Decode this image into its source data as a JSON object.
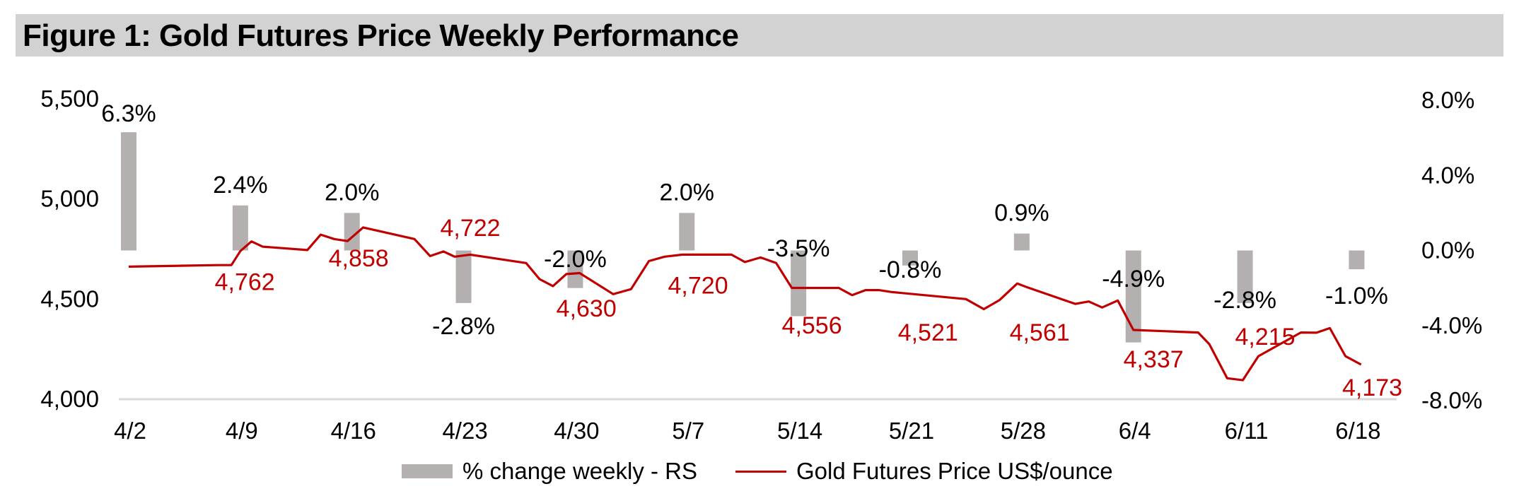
{
  "title": "Figure 1: Gold Futures Price Weekly Performance",
  "colors": {
    "bar": "#b4b0b0",
    "line": "#c00000",
    "price_label": "#c00000",
    "pct_label": "#000000",
    "axis": "#d9d9d9"
  },
  "legend": {
    "bar_label": "% change weekly - RS",
    "line_label": "Gold Futures Price US$/ounce"
  },
  "chart_data": {
    "type": "bar+line",
    "legend_position": "bottom",
    "grid": false,
    "x_ticks": [
      "4/2",
      "4/9",
      "4/16",
      "4/23",
      "4/30",
      "5/7",
      "5/14",
      "5/21",
      "5/28",
      "6/4",
      "6/11",
      "6/18"
    ],
    "y_left": {
      "ticks": [
        "4,000",
        "4,500",
        "5,000",
        "5,500"
      ],
      "range": [
        4000,
        5500
      ]
    },
    "y_right": {
      "ticks": [
        "-8.0%",
        "-4.0%",
        "0.0%",
        "4.0%",
        "8.0%"
      ],
      "range": [
        -8,
        8
      ]
    },
    "bars": [
      {
        "x": 0,
        "value": 6.3,
        "label": "6.3%"
      },
      {
        "x": 5,
        "value": 2.4,
        "label": "2.4%"
      },
      {
        "x": 10,
        "value": 2.0,
        "label": "2.0%"
      },
      {
        "x": 15,
        "value": -2.8,
        "label": "-2.8%"
      },
      {
        "x": 20,
        "value": -2.0,
        "label": "-2.0%"
      },
      {
        "x": 25,
        "value": 2.0,
        "label": "2.0%"
      },
      {
        "x": 30,
        "value": -3.5,
        "label": "-3.5%"
      },
      {
        "x": 35,
        "value": -0.8,
        "label": "-0.8%"
      },
      {
        "x": 40,
        "value": 0.9,
        "label": "0.9%"
      },
      {
        "x": 45,
        "value": -4.9,
        "label": "-4.9%"
      },
      {
        "x": 50,
        "value": -2.8,
        "label": "-2.8%"
      },
      {
        "x": 55,
        "value": -1.0,
        "label": "-1.0%"
      }
    ],
    "price_series": [
      [
        0,
        4662
      ],
      [
        4,
        4670
      ],
      [
        4.6,
        4670
      ],
      [
        5,
        4740
      ],
      [
        5.5,
        4788
      ],
      [
        6,
        4762
      ],
      [
        8,
        4745
      ],
      [
        8.6,
        4822
      ],
      [
        9.2,
        4800
      ],
      [
        9.8,
        4790
      ],
      [
        10.5,
        4858
      ],
      [
        12.8,
        4800
      ],
      [
        13.5,
        4715
      ],
      [
        14.1,
        4738
      ],
      [
        14.6,
        4712
      ],
      [
        15.3,
        4722
      ],
      [
        17.8,
        4680
      ],
      [
        18.4,
        4600
      ],
      [
        19,
        4565
      ],
      [
        19.6,
        4625
      ],
      [
        20.2,
        4630
      ],
      [
        21.7,
        4525
      ],
      [
        22.5,
        4550
      ],
      [
        23.3,
        4690
      ],
      [
        24,
        4712
      ],
      [
        24.8,
        4722
      ],
      [
        27,
        4722
      ],
      [
        27.6,
        4685
      ],
      [
        28.3,
        4708
      ],
      [
        29,
        4680
      ],
      [
        29.7,
        4556
      ],
      [
        31.8,
        4556
      ],
      [
        32.4,
        4520
      ],
      [
        33,
        4545
      ],
      [
        33.6,
        4545
      ],
      [
        34.2,
        4535
      ],
      [
        37.5,
        4500
      ],
      [
        38.3,
        4450
      ],
      [
        39,
        4495
      ],
      [
        39.8,
        4578
      ],
      [
        40.2,
        4561
      ],
      [
        42.4,
        4476
      ],
      [
        43,
        4488
      ],
      [
        43.6,
        4458
      ],
      [
        44.3,
        4493
      ],
      [
        45,
        4346
      ],
      [
        47.9,
        4333
      ],
      [
        48.4,
        4275
      ],
      [
        49.2,
        4105
      ],
      [
        49.9,
        4095
      ],
      [
        50.6,
        4215
      ],
      [
        52.5,
        4333
      ],
      [
        53.2,
        4332
      ],
      [
        53.8,
        4355
      ],
      [
        54.5,
        4215
      ],
      [
        55.2,
        4173
      ]
    ],
    "price_labels": [
      {
        "x": 5.2,
        "text": "4,762",
        "pos": "below"
      },
      {
        "x": 10.3,
        "text": "4,858",
        "pos": "below"
      },
      {
        "x": 15.3,
        "text": "4,722",
        "pos": "above"
      },
      {
        "x": 20.5,
        "text": "4,630",
        "pos": "below"
      },
      {
        "x": 25.5,
        "text": "4,720",
        "pos": "below"
      },
      {
        "x": 30.6,
        "text": "4,556",
        "pos": "below"
      },
      {
        "x": 35.8,
        "text": "4,521",
        "pos": "below"
      },
      {
        "x": 40.8,
        "text": "4,561",
        "pos": "below"
      },
      {
        "x": 45.9,
        "text": "4,337",
        "pos": "below"
      },
      {
        "x": 50.9,
        "text": "4,215",
        "pos": "above"
      },
      {
        "x": 55.7,
        "text": "4,173",
        "pos": "below"
      }
    ]
  }
}
